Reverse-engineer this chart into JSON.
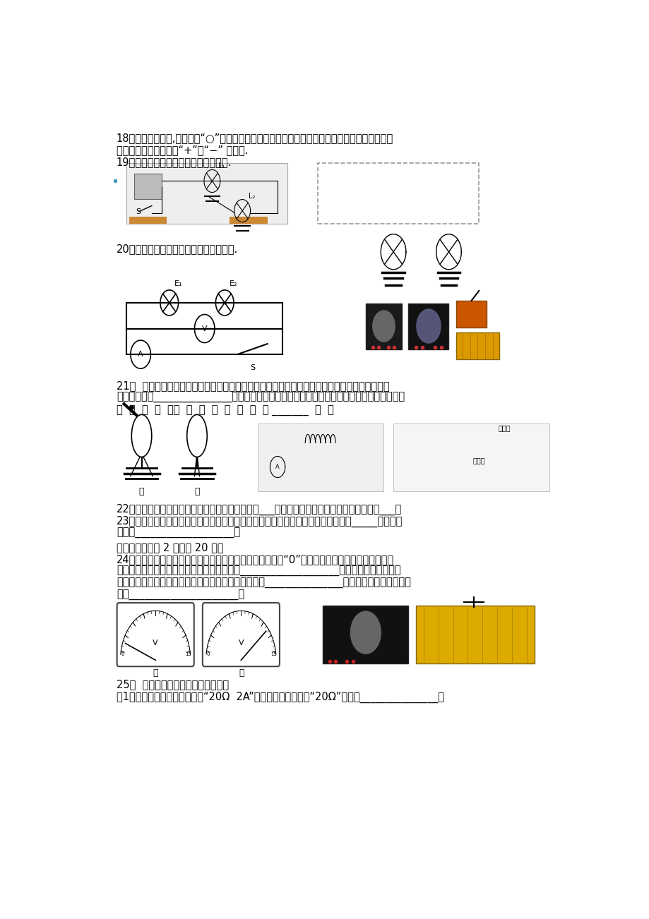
{
  "bg_color": "#ffffff",
  "line1": "18．如下左图所示,电路中的“○”内，填入电流表或电压表的符号，要求两灯都能工作，并在图上",
  "line2": "标出电流表、电压表的“+”、“−” 接线漩.",
  "line3": "19．将左图中的电路图画在右面方框内.",
  "line20": "20．根据如下图所示的电路图连接实物图.",
  "line21a": "21．  丝绸摩擦过的玻璃棒和不带电的验电器金属球接触，会发现验电器金属箔片张开，如下图甲",
  "line21b": "所示，原因是_______________。若再将另一带电小球与该验电器金属球接触，发现箔片闭合，",
  "line21c": "如  图  乙  所  示，  则  此  带  电  小  球  带 _______  电  。",
  "line22": "22．上图（中），鐵丝加热时，电流表的示数会变___，此现象说明温度越高，鐵丝的电阔越___。",
  "line23": "23．如右上图所示，闭合开关后，灯泡不亮；当玻璃珠被烧到红热状态时，灯泡逐渐_____。这一现",
  "line23b": "象表明___________________。",
  "line4": "四．实验（每空 2 分，共 20 分）",
  "line24a": "24．某同学在用电压表测电压前，已经将电压表的指针调到“0”刻度线上，第一次将电压表接入电",
  "line24b": "路时，指针偏转情况如下图甲所示，这是因为___________________；纠正后第二次把电压",
  "line24c": "表接入电路时，指针偏转情况如下图乙所示，这是因为_______________，此时应该先断开开关，",
  "line24d": "然后_____________________。",
  "line25a": "25．  用滑动变阔器改变小灯泡的亮度",
  "line25b": "（1）实验室中有一铭牌上标有“20Ω  2A”字样的滑动变阔器，“20Ω”指的是_______________，",
  "E1_label": "E₁",
  "E2_label": "E₂",
  "jia_label": "甲",
  "yi_label": "乙",
  "jiedian_label": "接电源",
  "boli_label": "玻璃珠"
}
